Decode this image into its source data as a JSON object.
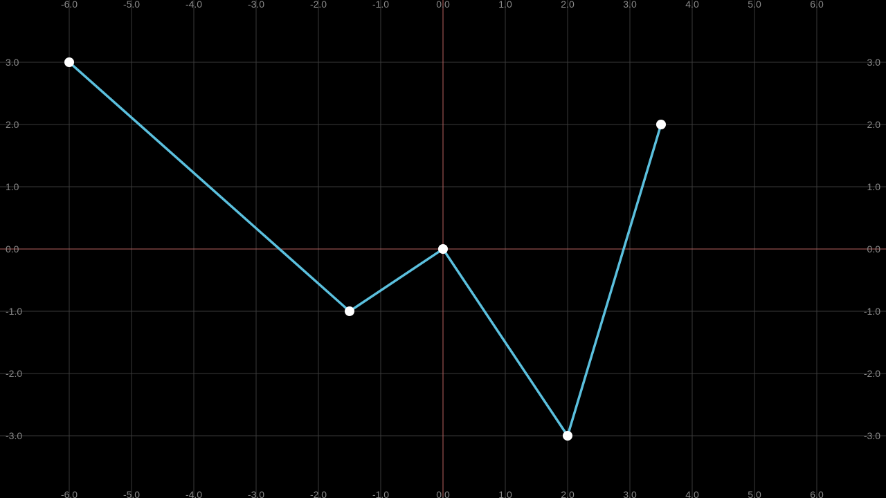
{
  "chart_data": {
    "type": "line",
    "title": "",
    "xlabel": "",
    "ylabel": "",
    "xlim": [
      -7,
      7.2
    ],
    "ylim": [
      -4,
      4
    ],
    "grid": true,
    "x_ticks": [
      -6,
      -5,
      -4,
      -3,
      -2,
      -1,
      0,
      1,
      2,
      3,
      4,
      5,
      6
    ],
    "y_ticks": [
      -3,
      -2,
      -1,
      0,
      1,
      2,
      3
    ],
    "x_tick_labels": [
      "-6.0",
      "-5.0",
      "-4.0",
      "-3.0",
      "-2.0",
      "-1.0",
      "0.0",
      "1.0",
      "2.0",
      "3.0",
      "4.0",
      "5.0",
      "6.0"
    ],
    "y_tick_labels": [
      "-3.0",
      "-2.0",
      "-1.0",
      "0.0",
      "1.0",
      "2.0",
      "3.0"
    ],
    "series": [
      {
        "points": [
          {
            "x": -6.0,
            "y": 3.0
          },
          {
            "x": -1.5,
            "y": -1.0
          },
          {
            "x": 0.0,
            "y": 0.0
          },
          {
            "x": 2.0,
            "y": -3.0
          },
          {
            "x": 3.5,
            "y": 2.0
          }
        ]
      }
    ],
    "colors": {
      "background": "#000000",
      "grid": "#3a3a3a",
      "axis": "#b8625f",
      "line": "#5bc0de",
      "marker": "#ffffff",
      "tick_label": "#8a8a8a"
    }
  }
}
